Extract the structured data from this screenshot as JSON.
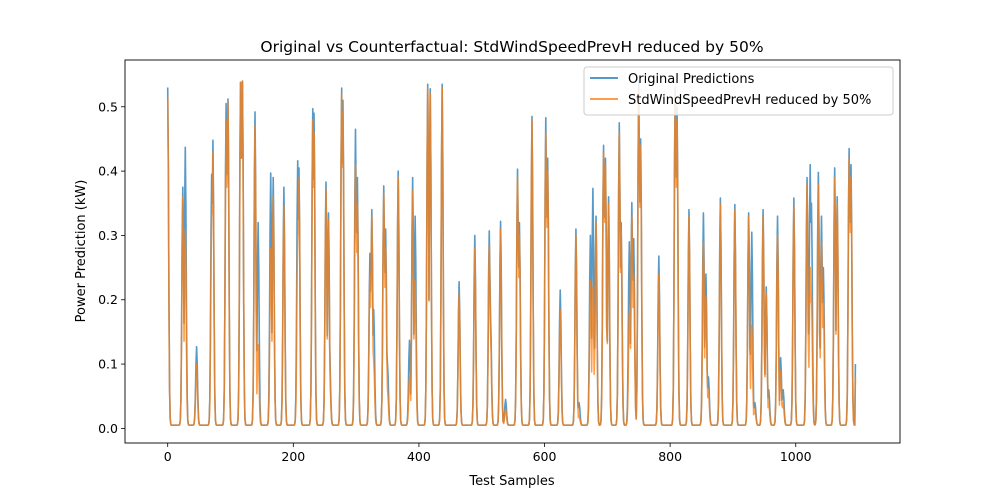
{
  "chart_data": {
    "type": "line",
    "title": "Original vs Counterfactual: StdWindSpeedPrevH reduced by 50%",
    "xlabel": "Test Samples",
    "ylabel": "Power Prediction (kW)",
    "xlim": [
      -68,
      1166
    ],
    "ylim": [
      -0.0227,
      0.5727
    ],
    "xticks": [
      0,
      200,
      400,
      600,
      800,
      1000
    ],
    "yticks": [
      0.0,
      0.1,
      0.2,
      0.3,
      0.4,
      0.5
    ],
    "xtick_labels": [
      "0",
      "200",
      "400",
      "600",
      "800",
      "1000"
    ],
    "ytick_labels": [
      "0.0",
      "0.1",
      "0.2",
      "0.3",
      "0.4",
      "0.5"
    ],
    "legend_position": "top-right",
    "n_samples": 1096,
    "baseline": 0.005,
    "colors": {
      "original": "#1f77b4",
      "counterfactual": "#ff7f0e"
    },
    "peaks_note_fields": "each peak: x center (sample index), original y, counterfactual y",
    "peaks": [
      [
        0,
        0.53,
        0.515
      ],
      [
        24,
        0.375,
        0.36
      ],
      [
        28,
        0.437,
        0.31
      ],
      [
        46,
        0.127,
        0.1
      ],
      [
        70,
        0.395,
        0.33
      ],
      [
        72,
        0.448,
        0.43
      ],
      [
        93,
        0.505,
        0.48
      ],
      [
        96,
        0.512,
        0.508
      ],
      [
        116,
        0.538,
        0.538
      ],
      [
        119,
        0.54,
        0.54
      ],
      [
        139,
        0.492,
        0.47
      ],
      [
        144,
        0.32,
        0.13
      ],
      [
        164,
        0.397,
        0.28
      ],
      [
        168,
        0.39,
        0.36
      ],
      [
        185,
        0.375,
        0.345
      ],
      [
        207,
        0.416,
        0.3
      ],
      [
        209,
        0.405,
        0.39
      ],
      [
        231,
        0.497,
        0.48
      ],
      [
        233,
        0.49,
        0.46
      ],
      [
        252,
        0.383,
        0.37
      ],
      [
        256,
        0.335,
        0.325
      ],
      [
        258,
        0.1,
        0.08
      ],
      [
        277,
        0.529,
        0.52
      ],
      [
        279,
        0.51,
        0.49
      ],
      [
        299,
        0.465,
        0.41
      ],
      [
        302,
        0.39,
        0.35
      ],
      [
        322,
        0.272,
        0.24
      ],
      [
        325,
        0.34,
        0.33
      ],
      [
        328,
        0.185,
        0.105
      ],
      [
        344,
        0.377,
        0.365
      ],
      [
        347,
        0.31,
        0.28
      ],
      [
        350,
        0.1,
        0.06
      ],
      [
        367,
        0.4,
        0.39
      ],
      [
        385,
        0.137,
        0.08
      ],
      [
        390,
        0.39,
        0.37
      ],
      [
        394,
        0.33,
        0.23
      ],
      [
        414,
        0.535,
        0.53
      ],
      [
        418,
        0.528,
        0.52
      ],
      [
        437,
        0.535,
        0.53
      ],
      [
        464,
        0.228,
        0.21
      ],
      [
        489,
        0.3,
        0.28
      ],
      [
        512,
        0.307,
        0.285
      ],
      [
        514,
        0.175,
        0.15
      ],
      [
        530,
        0.322,
        0.31
      ],
      [
        538,
        0.045,
        0.03
      ],
      [
        557,
        0.403,
        0.39
      ],
      [
        560,
        0.32,
        0.3
      ],
      [
        580,
        0.485,
        0.48
      ],
      [
        602,
        0.483,
        0.46
      ],
      [
        605,
        0.42,
        0.4
      ],
      [
        625,
        0.215,
        0.185
      ],
      [
        650,
        0.31,
        0.3
      ],
      [
        655,
        0.04,
        0.02
      ],
      [
        673,
        0.3,
        0.23
      ],
      [
        677,
        0.373,
        0.22
      ],
      [
        682,
        0.33,
        0.32
      ],
      [
        694,
        0.44,
        0.43
      ],
      [
        697,
        0.42,
        0.41
      ],
      [
        702,
        0.36,
        0.35
      ],
      [
        719,
        0.475,
        0.46
      ],
      [
        722,
        0.32,
        0.31
      ],
      [
        735,
        0.29,
        0.18
      ],
      [
        739,
        0.351,
        0.33
      ],
      [
        742,
        0.295,
        0.24
      ],
      [
        750,
        0.54,
        0.53
      ],
      [
        753,
        0.45,
        0.44
      ],
      [
        782,
        0.268,
        0.24
      ],
      [
        808,
        0.53,
        0.52
      ],
      [
        811,
        0.5,
        0.48
      ],
      [
        830,
        0.34,
        0.33
      ],
      [
        853,
        0.335,
        0.29
      ],
      [
        857,
        0.24,
        0.205
      ],
      [
        861,
        0.08,
        0.06
      ],
      [
        880,
        0.358,
        0.35
      ],
      [
        903,
        0.348,
        0.34
      ],
      [
        925,
        0.335,
        0.33
      ],
      [
        930,
        0.305,
        0.16
      ],
      [
        935,
        0.04,
        0.03
      ],
      [
        948,
        0.34,
        0.33
      ],
      [
        953,
        0.22,
        0.21
      ],
      [
        957,
        0.06,
        0.04
      ],
      [
        971,
        0.33,
        0.3
      ],
      [
        976,
        0.11,
        0.09
      ],
      [
        980,
        0.06,
        0.04
      ],
      [
        997,
        0.358,
        0.345
      ],
      [
        1018,
        0.39,
        0.38
      ],
      [
        1023,
        0.41,
        0.25
      ],
      [
        1025,
        0.35,
        0.21
      ],
      [
        1036,
        0.398,
        0.38
      ],
      [
        1041,
        0.33,
        0.29
      ],
      [
        1044,
        0.25,
        0.2
      ],
      [
        1062,
        0.405,
        0.39
      ],
      [
        1066,
        0.36,
        0.35
      ],
      [
        1085,
        0.435,
        0.42
      ],
      [
        1088,
        0.41,
        0.39
      ]
    ],
    "series": [
      {
        "name": "Original Predictions",
        "key": "original"
      },
      {
        "name": "StdWindSpeedPrevH reduced by 50%",
        "key": "counterfactual"
      }
    ]
  }
}
